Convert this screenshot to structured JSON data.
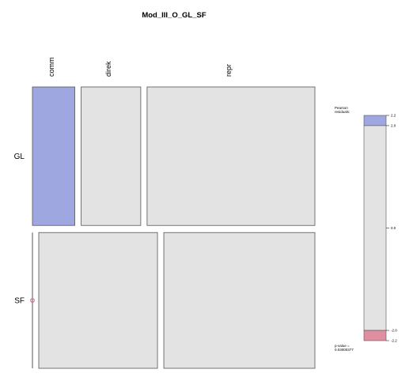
{
  "chart_data": {
    "type": "mosaic",
    "title": "Mod_III_O_GL_SF",
    "rows": [
      "GL",
      "SF"
    ],
    "columns": [
      "comm",
      "direk",
      "repr"
    ],
    "cells": [
      {
        "row": "GL",
        "col": "comm",
        "proportion": 0.157,
        "residual_class": "positive"
      },
      {
        "row": "GL",
        "col": "direk",
        "proportion": 0.221,
        "residual_class": "neutral"
      },
      {
        "row": "GL",
        "col": "repr",
        "proportion": 0.622,
        "residual_class": "neutral"
      },
      {
        "row": "SF",
        "col": "comm",
        "proportion": 0.0,
        "residual_class": "negative"
      },
      {
        "row": "SF",
        "col": "direk",
        "proportion": 0.44,
        "residual_class": "neutral"
      },
      {
        "row": "SF",
        "col": "repr",
        "proportion": 0.56,
        "residual_class": "neutral"
      }
    ],
    "row_proportions": [
      0.505,
      0.495
    ],
    "legend": {
      "title_line1": "Pearson",
      "title_line2": "residuals:",
      "min": -2.2,
      "max": 2.2,
      "ticks": [
        {
          "value": 2.2,
          "label": "2.2"
        },
        {
          "value": 2.0,
          "label": "2.0"
        },
        {
          "value": 0.0,
          "label": "0.0"
        },
        {
          "value": -2.0,
          "label": "-2.0"
        },
        {
          "value": -2.2,
          "label": "-2.2"
        }
      ],
      "pvalue_line1": "p-value =",
      "pvalue_line2": "0.03000377"
    },
    "colors": {
      "positive": "#9fa7e0",
      "neutral": "#e3e3e3",
      "negative": "#e08fa1",
      "border": "#555555",
      "zero_marker": "#c06878"
    }
  }
}
